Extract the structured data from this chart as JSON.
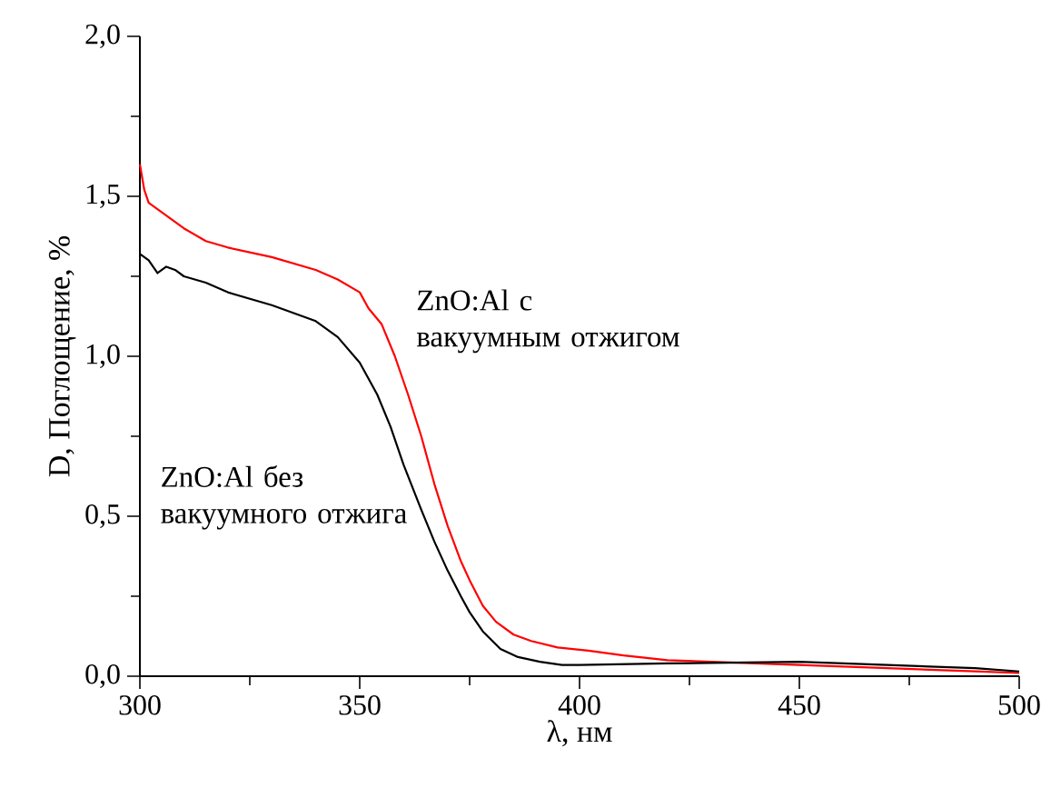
{
  "chart_data": {
    "type": "line",
    "xlabel": "λ, нм",
    "ylabel": "D, Поглощение, %",
    "xlim": [
      300,
      500
    ],
    "ylim": [
      0,
      2.0
    ],
    "xticks": [
      300,
      {
        "value": 325,
        "label": null
      },
      350,
      {
        "value": 375,
        "label": null
      },
      400,
      {
        "value": 425,
        "label": null
      },
      450,
      {
        "value": 475,
        "label": null
      },
      500
    ],
    "yticks": [
      {
        "value": 0,
        "label": "0,0"
      },
      {
        "value": 0.25,
        "label": null
      },
      {
        "value": 0.5,
        "label": "0,5"
      },
      {
        "value": 0.75,
        "label": null
      },
      {
        "value": 1.0,
        "label": "1,0"
      },
      {
        "value": 1.25,
        "label": null
      },
      {
        "value": 1.5,
        "label": "1,5"
      },
      {
        "value": 1.75,
        "label": null
      },
      {
        "value": 2.0,
        "label": "2,0"
      }
    ],
    "grid": false,
    "marker": "none",
    "line_style": "solid",
    "series": [
      {
        "color": "#ff0000",
        "x": [
          300,
          301,
          302,
          305,
          310,
          315,
          320,
          330,
          340,
          345,
          350,
          352,
          355,
          358,
          361,
          364,
          367,
          370,
          373,
          375,
          378,
          381,
          385,
          389,
          395,
          402,
          410,
          420,
          430,
          450,
          470,
          490,
          500
        ],
        "values": [
          1.6,
          1.52,
          1.48,
          1.45,
          1.4,
          1.36,
          1.34,
          1.31,
          1.27,
          1.24,
          1.2,
          1.15,
          1.1,
          1.0,
          0.88,
          0.75,
          0.6,
          0.47,
          0.36,
          0.3,
          0.22,
          0.17,
          0.13,
          0.11,
          0.09,
          0.08,
          0.065,
          0.05,
          0.045,
          0.035,
          0.025,
          0.015,
          0.01
        ]
      },
      {
        "color": "#000000",
        "x": [
          300,
          302,
          304,
          306,
          308,
          310,
          315,
          320,
          330,
          340,
          345,
          350,
          354,
          357,
          360,
          364,
          367,
          370,
          373,
          375,
          378,
          382,
          386,
          391,
          396,
          400,
          420,
          450,
          470,
          490,
          500
        ],
        "values": [
          1.32,
          1.3,
          1.26,
          1.28,
          1.27,
          1.25,
          1.23,
          1.2,
          1.16,
          1.11,
          1.06,
          0.98,
          0.88,
          0.78,
          0.66,
          0.52,
          0.42,
          0.33,
          0.25,
          0.2,
          0.14,
          0.085,
          0.06,
          0.045,
          0.035,
          0.035,
          0.04,
          0.045,
          0.035,
          0.025,
          0.015
        ]
      }
    ],
    "annotations": [
      "ZnO:Al с вакуумным отжигом",
      "ZnO:Al без вакуумного отжига"
    ]
  }
}
